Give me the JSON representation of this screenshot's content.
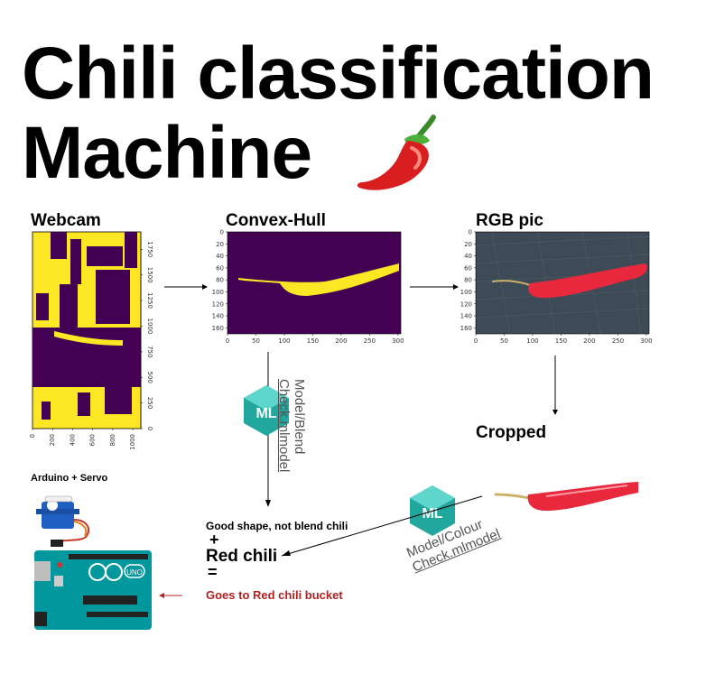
{
  "title": {
    "line1": "Chili classification",
    "line2": "Machine"
  },
  "panels": {
    "webcam": {
      "label": "Webcam"
    },
    "convex_hull": {
      "label": "Convex-Hull"
    },
    "rgb": {
      "label": "RGB pic"
    },
    "cropped": {
      "label": "Cropped"
    }
  },
  "webcam_axes": {
    "x_ticks": [
      "0",
      "200",
      "400",
      "600",
      "800",
      "1000"
    ],
    "y_ticks": [
      "0",
      "250",
      "500",
      "750",
      "1000",
      "1250",
      "1500",
      "1750"
    ]
  },
  "plot_axes": {
    "x_ticks": [
      "0",
      "50",
      "100",
      "150",
      "200",
      "250",
      "300"
    ],
    "y_ticks": [
      "0",
      "20",
      "40",
      "60",
      "80",
      "100",
      "120",
      "140",
      "160"
    ]
  },
  "models": {
    "blend": {
      "badge": "ML",
      "line1": "Model/Blend",
      "line2": "Check.mlmodel"
    },
    "colour": {
      "badge": "ML",
      "line1": "Model/Colour",
      "line2": "Check.mlmodel"
    }
  },
  "hardware": {
    "label": "Arduino + Servo",
    "board_text": "UNO"
  },
  "result": {
    "good_shape": "Good shape, not blend chili",
    "plus": "+",
    "red_chili": "Red chili",
    "equals": "=",
    "goes_to": "Goes to Red chili bucket"
  },
  "colors": {
    "viridis_dark": "#440154",
    "viridis_yellow": "#fde725",
    "chili_red": "#e8283c",
    "ml_teal": "#2fb8b0",
    "result_red": "#b22222",
    "arduino_blue": "#00979d"
  }
}
